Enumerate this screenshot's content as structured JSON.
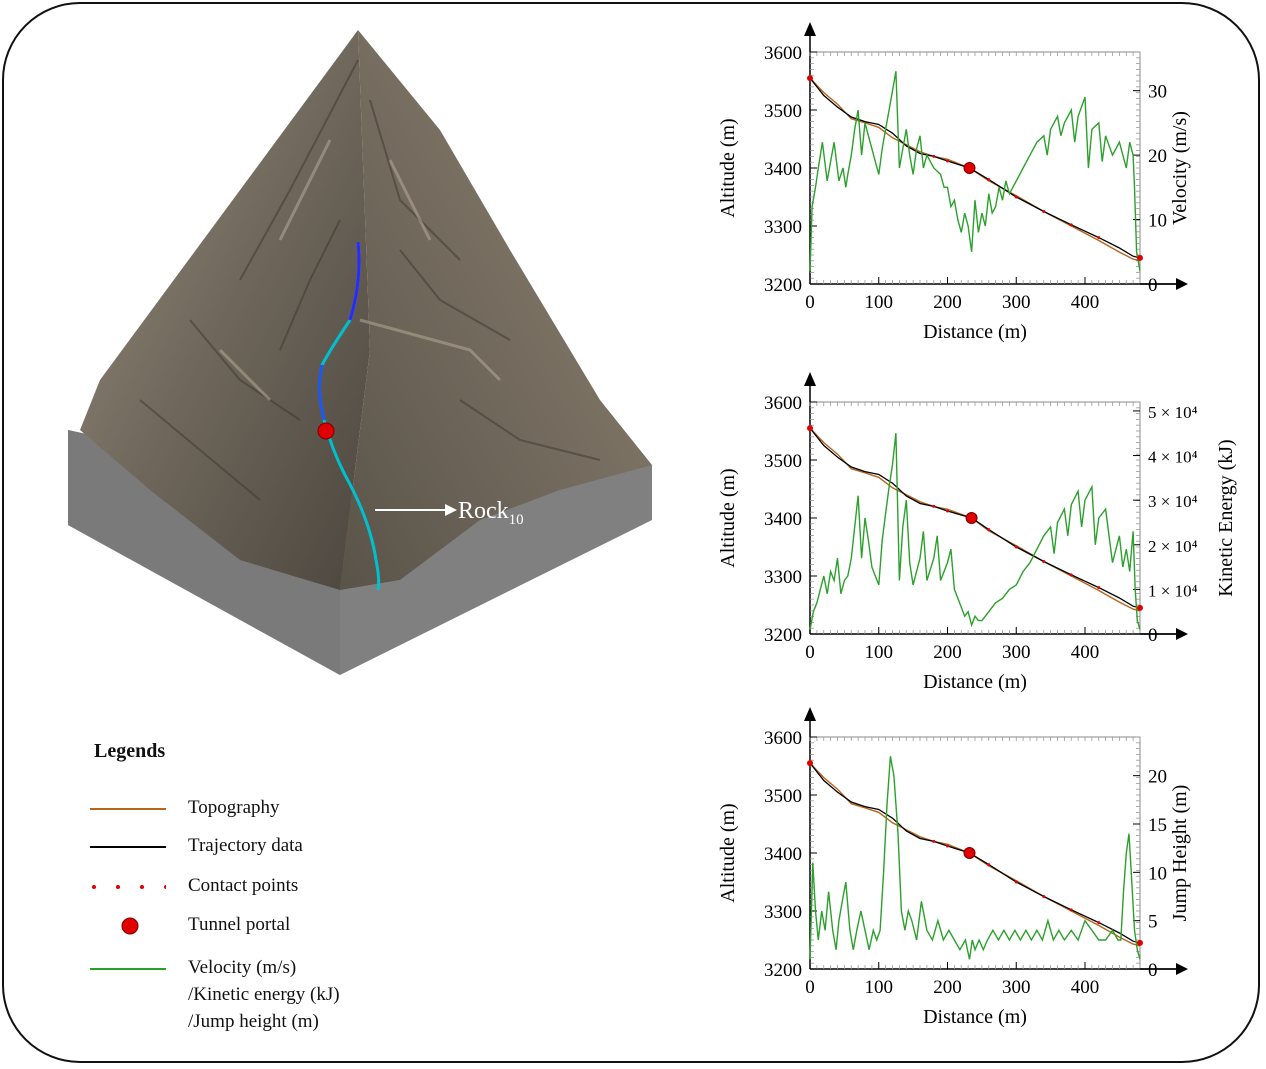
{
  "terrain": {
    "rock_label": "Rock",
    "rock_label_sub": "10",
    "colors": {
      "base_side": "#7f7f7f",
      "base_dark": "#6b6b6b",
      "rock": "#7c7468",
      "rock_light": "#a09a8d",
      "rock_dark": "#4a443d",
      "arrow": "#ffffff"
    }
  },
  "legend": {
    "title": "Legends",
    "items": [
      {
        "label": "Topography",
        "kind": "line",
        "color": "#b5651d"
      },
      {
        "label": "Trajectory data",
        "kind": "line",
        "color": "#000000"
      },
      {
        "label": "Contact points",
        "kind": "dots",
        "color": "#e00000"
      },
      {
        "label": "Tunnel portal",
        "kind": "marker",
        "color": "#e00000"
      },
      {
        "label": "Velocity (m/s)",
        "kind": "line",
        "color": "#2ca02c",
        "extra": [
          "/Kinetic energy (kJ)",
          "/Jump height (m)"
        ]
      }
    ]
  },
  "chart_data": [
    {
      "type": "line",
      "xlabel": "Distance (m)",
      "ylabel": "Altitude (m)",
      "y2label": "Velocity (m/s)",
      "xlim": [
        0,
        480
      ],
      "ylim": [
        3200,
        3600
      ],
      "y2lim": [
        0,
        36
      ],
      "xticks": [
        0,
        100,
        200,
        300,
        400
      ],
      "yticks": [
        3200,
        3300,
        3400,
        3500,
        3600
      ],
      "y2ticks": [
        {
          "v": 0,
          "label": "0"
        },
        {
          "v": 10,
          "label": "10"
        },
        {
          "v": 20,
          "label": "20"
        },
        {
          "v": 30,
          "label": "30"
        }
      ],
      "portal": {
        "x": 232,
        "y": 3400
      },
      "series": [
        {
          "role": "topography",
          "color": "#b5651d",
          "axis": "left",
          "x": [
            0,
            20,
            40,
            60,
            80,
            100,
            120,
            140,
            160,
            180,
            200,
            232,
            260,
            300,
            340,
            380,
            420,
            450,
            470,
            480
          ],
          "y": [
            3555,
            3530,
            3510,
            3485,
            3478,
            3470,
            3452,
            3440,
            3428,
            3420,
            3415,
            3400,
            3378,
            3352,
            3325,
            3300,
            3275,
            3255,
            3243,
            3240
          ]
        },
        {
          "role": "trajectory",
          "color": "#000000",
          "axis": "left",
          "x": [
            0,
            20,
            40,
            60,
            80,
            100,
            120,
            140,
            160,
            180,
            200,
            232,
            260,
            300,
            340,
            380,
            420,
            450,
            470,
            480
          ],
          "y": [
            3555,
            3525,
            3505,
            3488,
            3480,
            3475,
            3460,
            3438,
            3425,
            3420,
            3412,
            3400,
            3380,
            3350,
            3325,
            3302,
            3280,
            3262,
            3248,
            3245
          ]
        },
        {
          "role": "velocity",
          "color": "#2ca02c",
          "axis": "right",
          "x": [
            0,
            3,
            8,
            12,
            18,
            25,
            30,
            35,
            42,
            48,
            52,
            55,
            60,
            65,
            70,
            75,
            80,
            85,
            90,
            95,
            100,
            105,
            110,
            115,
            120,
            125,
            130,
            135,
            140,
            145,
            150,
            155,
            160,
            165,
            170,
            180,
            190,
            195,
            200,
            205,
            210,
            215,
            220,
            225,
            230,
            235,
            240,
            245,
            250,
            255,
            260,
            265,
            270,
            275,
            280,
            285,
            290,
            300,
            310,
            320,
            330,
            340,
            345,
            350,
            360,
            365,
            370,
            380,
            385,
            390,
            400,
            405,
            410,
            420,
            425,
            430,
            440,
            450,
            460,
            465,
            470,
            472,
            475,
            480
          ],
          "y": [
            2,
            12,
            15,
            18,
            22,
            16,
            19,
            22,
            16,
            18,
            15,
            17,
            20,
            24,
            27,
            20,
            25,
            23,
            21,
            19,
            17,
            21,
            24,
            27,
            30,
            33,
            18,
            21,
            24,
            20,
            17,
            21,
            23,
            18,
            20,
            18,
            17,
            15,
            15,
            12,
            13,
            10,
            8,
            11,
            9,
            5,
            13,
            8,
            11,
            9,
            14,
            11,
            12,
            15,
            13,
            16,
            14,
            16,
            18,
            20,
            22,
            23,
            20,
            24,
            26,
            23,
            25,
            27,
            22,
            26,
            29,
            18,
            24,
            25,
            19,
            23,
            20,
            22,
            18,
            22,
            20,
            15,
            5,
            2
          ]
        }
      ]
    },
    {
      "type": "line",
      "xlabel": "Distance (m)",
      "ylabel": "Altitude (m)",
      "y2label": "Kinetic Energy (kJ)",
      "xlim": [
        0,
        480
      ],
      "ylim": [
        3200,
        3600
      ],
      "y2lim": [
        0,
        52000
      ],
      "xticks": [
        0,
        100,
        200,
        300,
        400
      ],
      "yticks": [
        3200,
        3300,
        3400,
        3500,
        3600
      ],
      "y2ticks": [
        {
          "v": 0,
          "label": "0"
        },
        {
          "v": 10000,
          "label": "1 × 10⁴"
        },
        {
          "v": 20000,
          "label": "2 × 10⁴"
        },
        {
          "v": 30000,
          "label": "3 × 10⁴"
        },
        {
          "v": 40000,
          "label": "4 × 10⁴"
        },
        {
          "v": 50000,
          "label": "5 × 10⁴"
        }
      ],
      "portal": {
        "x": 235,
        "y": 3400
      },
      "series": [
        {
          "role": "topography",
          "color": "#b5651d",
          "axis": "left",
          "x": [
            0,
            20,
            40,
            60,
            80,
            100,
            120,
            140,
            160,
            180,
            200,
            235,
            260,
            300,
            340,
            380,
            420,
            450,
            470,
            480
          ],
          "y": [
            3555,
            3530,
            3510,
            3485,
            3478,
            3470,
            3452,
            3440,
            3428,
            3420,
            3415,
            3400,
            3378,
            3352,
            3325,
            3300,
            3275,
            3255,
            3243,
            3240
          ]
        },
        {
          "role": "trajectory",
          "color": "#000000",
          "axis": "left",
          "x": [
            0,
            20,
            40,
            60,
            80,
            100,
            120,
            140,
            160,
            180,
            200,
            235,
            260,
            300,
            340,
            380,
            420,
            450,
            470,
            480
          ],
          "y": [
            3555,
            3525,
            3505,
            3488,
            3480,
            3475,
            3460,
            3438,
            3425,
            3420,
            3412,
            3400,
            3380,
            3350,
            3325,
            3302,
            3280,
            3262,
            3248,
            3245
          ]
        },
        {
          "role": "kinetic_energy",
          "color": "#2ca02c",
          "axis": "right",
          "x": [
            0,
            5,
            10,
            15,
            20,
            25,
            30,
            35,
            40,
            45,
            50,
            55,
            60,
            65,
            70,
            75,
            80,
            85,
            90,
            95,
            100,
            105,
            110,
            115,
            120,
            125,
            130,
            135,
            140,
            145,
            150,
            160,
            165,
            170,
            180,
            185,
            190,
            200,
            205,
            210,
            220,
            225,
            230,
            235,
            240,
            245,
            250,
            255,
            260,
            265,
            270,
            280,
            290,
            300,
            310,
            320,
            330,
            340,
            350,
            355,
            360,
            370,
            375,
            380,
            390,
            395,
            400,
            410,
            415,
            420,
            430,
            440,
            450,
            455,
            460,
            465,
            470,
            473,
            476,
            480
          ],
          "y": [
            1000,
            5000,
            7000,
            10000,
            13000,
            9000,
            14000,
            12000,
            17000,
            9000,
            12000,
            13000,
            17000,
            24000,
            31000,
            17000,
            26000,
            21000,
            15000,
            13000,
            11000,
            21000,
            27000,
            33000,
            38000,
            45000,
            12000,
            24000,
            30000,
            16000,
            11000,
            17000,
            23000,
            12000,
            17000,
            22000,
            12000,
            16000,
            19000,
            10000,
            6000,
            4000,
            5000,
            2000,
            4000,
            3000,
            3000,
            4000,
            5000,
            6000,
            7000,
            8000,
            10000,
            11000,
            14000,
            16000,
            19000,
            22000,
            24000,
            18000,
            25000,
            28000,
            22000,
            29000,
            32000,
            24000,
            30000,
            33000,
            20000,
            26000,
            28000,
            16000,
            22000,
            15000,
            19000,
            14000,
            23000,
            10000,
            3000,
            1000
          ]
        }
      ]
    },
    {
      "type": "line",
      "xlabel": "Distance (m)",
      "ylabel": "Altitude (m)",
      "y2label": "Jump Height (m)",
      "xlim": [
        0,
        480
      ],
      "ylim": [
        3200,
        3600
      ],
      "y2lim": [
        0,
        24
      ],
      "xticks": [
        0,
        100,
        200,
        300,
        400
      ],
      "yticks": [
        3200,
        3300,
        3400,
        3500,
        3600
      ],
      "y2ticks": [
        {
          "v": 0,
          "label": "0"
        },
        {
          "v": 5,
          "label": "5"
        },
        {
          "v": 10,
          "label": "10"
        },
        {
          "v": 15,
          "label": "15"
        },
        {
          "v": 20,
          "label": "20"
        }
      ],
      "portal": {
        "x": 232,
        "y": 3400
      },
      "series": [
        {
          "role": "topography",
          "color": "#b5651d",
          "axis": "left",
          "x": [
            0,
            20,
            40,
            60,
            80,
            100,
            120,
            140,
            160,
            180,
            200,
            232,
            260,
            300,
            340,
            380,
            420,
            450,
            470,
            480
          ],
          "y": [
            3555,
            3530,
            3510,
            3485,
            3478,
            3470,
            3452,
            3440,
            3428,
            3420,
            3415,
            3400,
            3378,
            3352,
            3325,
            3300,
            3275,
            3255,
            3243,
            3240
          ]
        },
        {
          "role": "trajectory",
          "color": "#000000",
          "axis": "left",
          "x": [
            0,
            20,
            40,
            60,
            80,
            100,
            120,
            140,
            160,
            180,
            200,
            232,
            260,
            300,
            340,
            380,
            420,
            450,
            470,
            480
          ],
          "y": [
            3555,
            3525,
            3505,
            3488,
            3480,
            3475,
            3460,
            3438,
            3425,
            3420,
            3412,
            3400,
            3380,
            3350,
            3325,
            3302,
            3280,
            3262,
            3248,
            3245
          ]
        },
        {
          "role": "jump_height",
          "color": "#2ca02c",
          "axis": "right",
          "x": [
            0,
            4,
            8,
            12,
            17,
            22,
            27,
            33,
            38,
            42,
            47,
            52,
            58,
            63,
            68,
            74,
            80,
            86,
            92,
            97,
            102,
            107,
            112,
            117,
            122,
            128,
            133,
            138,
            143,
            148,
            155,
            162,
            170,
            178,
            186,
            194,
            202,
            210,
            218,
            226,
            232,
            236,
            240,
            246,
            252,
            258,
            266,
            274,
            282,
            290,
            298,
            306,
            314,
            322,
            330,
            338,
            346,
            354,
            362,
            370,
            380,
            390,
            400,
            410,
            420,
            430,
            440,
            448,
            452,
            456,
            460,
            464,
            468,
            472,
            476,
            480
          ],
          "y": [
            1,
            11,
            6,
            3,
            6,
            4,
            8,
            4,
            2,
            5,
            7,
            9,
            4,
            2,
            4,
            6,
            4,
            2,
            4,
            3,
            4,
            10,
            17,
            22,
            20,
            14,
            6,
            4,
            6,
            5,
            3,
            7,
            4,
            3,
            5,
            3,
            4,
            3,
            2,
            3,
            1,
            3,
            2,
            3,
            2,
            3,
            4,
            3,
            4,
            3,
            4,
            3,
            4,
            3,
            4,
            3,
            5,
            3,
            4,
            3,
            4,
            3,
            5,
            4,
            3,
            3,
            4,
            3,
            3,
            8,
            12,
            14,
            9,
            4,
            2,
            1
          ]
        }
      ]
    }
  ]
}
